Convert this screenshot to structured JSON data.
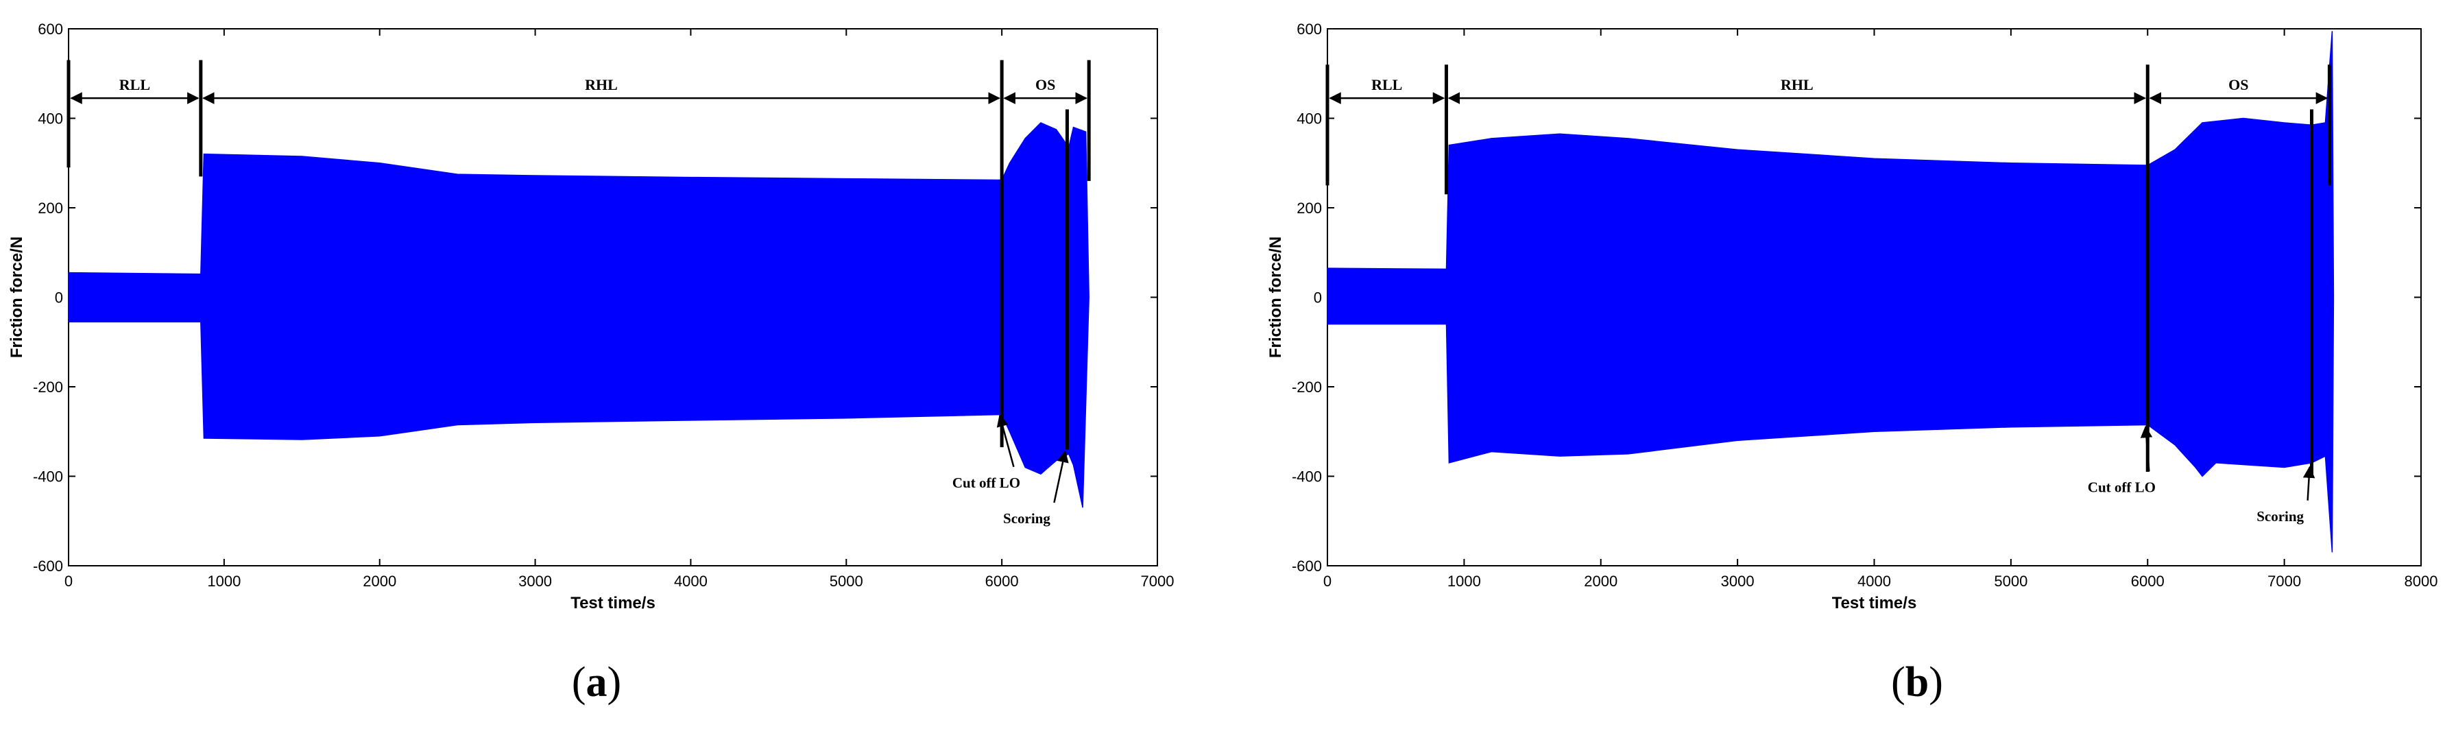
{
  "panels": [
    {
      "caption_letter": "a",
      "chart_data": {
        "type": "area",
        "xlabel": "Test time/s",
        "ylabel": "Friction force/N",
        "xlim": [
          0,
          7000
        ],
        "ylim": [
          -600,
          600
        ],
        "xticks": [
          0,
          1000,
          2000,
          3000,
          4000,
          5000,
          6000,
          7000
        ],
        "yticks": [
          -600,
          -400,
          -200,
          0,
          200,
          400,
          600
        ],
        "series": [
          {
            "color": "#0000ff",
            "upper": [
              [
                0,
                55
              ],
              [
                850,
                52
              ],
              [
                870,
                320
              ],
              [
                1500,
                315
              ],
              [
                2000,
                300
              ],
              [
                2500,
                275
              ],
              [
                3000,
                272
              ],
              [
                4000,
                268
              ],
              [
                5000,
                265
              ],
              [
                6000,
                262
              ],
              [
                6050,
                300
              ],
              [
                6150,
                355
              ],
              [
                6250,
                390
              ],
              [
                6350,
                375
              ],
              [
                6430,
                335
              ],
              [
                6460,
                380
              ],
              [
                6540,
                370
              ],
              [
                6560,
                0
              ]
            ],
            "lower": [
              [
                0,
                -55
              ],
              [
                850,
                -55
              ],
              [
                870,
                -315
              ],
              [
                1500,
                -318
              ],
              [
                2000,
                -310
              ],
              [
                2500,
                -285
              ],
              [
                3000,
                -280
              ],
              [
                4000,
                -275
              ],
              [
                5000,
                -270
              ],
              [
                6000,
                -262
              ],
              [
                6050,
                -300
              ],
              [
                6150,
                -380
              ],
              [
                6250,
                -395
              ],
              [
                6350,
                -365
              ],
              [
                6430,
                -350
              ],
              [
                6460,
                -375
              ],
              [
                6520,
                -470
              ],
              [
                6560,
                0
              ]
            ]
          }
        ],
        "phases": [
          {
            "label": "RLL",
            "x_start": 0,
            "x_end": 850
          },
          {
            "label": "RHL",
            "x_start": 850,
            "x_end": 6000
          },
          {
            "label": "OS",
            "x_start": 6000,
            "x_end": 6560
          }
        ],
        "markers": [
          {
            "x": 0,
            "y_top": 530,
            "y_bottom": 290
          },
          {
            "x": 850,
            "y_top": 530,
            "y_bottom": 270
          },
          {
            "x": 6000,
            "y_top": 530,
            "y_bottom": -335
          },
          {
            "x": 6420,
            "y_top": 420,
            "y_bottom": -340
          },
          {
            "x": 6560,
            "y_top": 530,
            "y_bottom": 260
          }
        ],
        "annotations": [
          {
            "text": "Cut off LO",
            "point_x": 6000,
            "point_y": -260,
            "text_x": 5900,
            "text_y": -425
          },
          {
            "text": "Scoring",
            "point_x": 6420,
            "point_y": -340,
            "text_x": 6160,
            "text_y": -505
          }
        ]
      }
    },
    {
      "caption_letter": "b",
      "chart_data": {
        "type": "area",
        "xlabel": "Test time/s",
        "ylabel": "Friction force/N",
        "xlim": [
          0,
          8000
        ],
        "ylim": [
          -600,
          600
        ],
        "xticks": [
          0,
          1000,
          2000,
          3000,
          4000,
          5000,
          6000,
          7000,
          8000
        ],
        "yticks": [
          -600,
          -400,
          -200,
          0,
          200,
          400,
          600
        ],
        "series": [
          {
            "color": "#0000ff",
            "upper": [
              [
                0,
                65
              ],
              [
                870,
                63
              ],
              [
                890,
                340
              ],
              [
                1200,
                355
              ],
              [
                1700,
                365
              ],
              [
                2200,
                355
              ],
              [
                3000,
                330
              ],
              [
                4000,
                310
              ],
              [
                5000,
                300
              ],
              [
                6000,
                295
              ],
              [
                6200,
                330
              ],
              [
                6400,
                390
              ],
              [
                6700,
                400
              ],
              [
                7000,
                390
              ],
              [
                7200,
                385
              ],
              [
                7300,
                390
              ],
              [
                7350,
                595
              ],
              [
                7360,
                0
              ]
            ],
            "lower": [
              [
                0,
                -60
              ],
              [
                870,
                -60
              ],
              [
                890,
                -370
              ],
              [
                1200,
                -345
              ],
              [
                1700,
                -355
              ],
              [
                2200,
                -350
              ],
              [
                3000,
                -320
              ],
              [
                4000,
                -300
              ],
              [
                5000,
                -290
              ],
              [
                6000,
                -285
              ],
              [
                6200,
                -330
              ],
              [
                6350,
                -380
              ],
              [
                6400,
                -400
              ],
              [
                6500,
                -370
              ],
              [
                7000,
                -380
              ],
              [
                7200,
                -370
              ],
              [
                7300,
                -355
              ],
              [
                7350,
                -570
              ],
              [
                7360,
                0
              ]
            ]
          }
        ],
        "phases": [
          {
            "label": "RLL",
            "x_start": 0,
            "x_end": 870
          },
          {
            "label": "RHL",
            "x_start": 870,
            "x_end": 6000
          },
          {
            "label": "OS",
            "x_start": 6000,
            "x_end": 7330
          }
        ],
        "markers": [
          {
            "x": 0,
            "y_top": 520,
            "y_bottom": 250
          },
          {
            "x": 870,
            "y_top": 520,
            "y_bottom": 230
          },
          {
            "x": 6000,
            "y_top": 520,
            "y_bottom": -390
          },
          {
            "x": 7200,
            "y_top": 420,
            "y_bottom": -400
          },
          {
            "x": 7330,
            "y_top": 520,
            "y_bottom": 250
          }
        ],
        "annotations": [
          {
            "text": "Cut off LO",
            "point_x": 6000,
            "point_y": -285,
            "text_x": 5810,
            "text_y": -435
          },
          {
            "text": "Scoring",
            "point_x": 7200,
            "point_y": -375,
            "text_x": 6970,
            "text_y": -500
          }
        ]
      }
    }
  ]
}
